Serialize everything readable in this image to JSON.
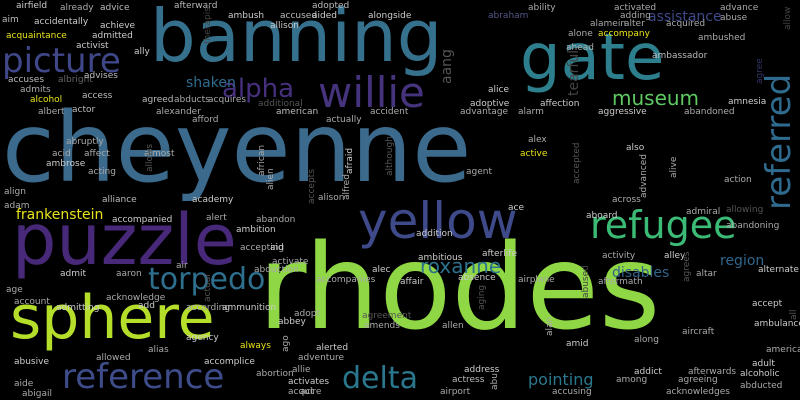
{
  "words": [
    {
      "text": "cheyenne",
      "color": "#3b6a8c"
    },
    {
      "text": "rhodes",
      "color": "#8fd744"
    },
    {
      "text": "banning",
      "color": "#35718d"
    },
    {
      "text": "gate",
      "color": "#2d7f8e"
    },
    {
      "text": "puzzle",
      "color": "#482878"
    },
    {
      "text": "sphere",
      "color": "#b5de2b"
    },
    {
      "text": "yellow",
      "color": "#3e4a89"
    },
    {
      "text": "refugee",
      "color": "#3bbb75"
    },
    {
      "text": "picture",
      "color": "#3f4788"
    },
    {
      "text": "willie",
      "color": "#46337e"
    },
    {
      "text": "referred",
      "color": "#2f6b8e"
    },
    {
      "text": "reference",
      "color": "#3e4c8a"
    },
    {
      "text": "alpha",
      "color": "#46307e"
    },
    {
      "text": "torpedo",
      "color": "#2e6f8e"
    },
    {
      "text": "delta",
      "color": "#2a778e"
    },
    {
      "text": "museum",
      "color": "#5ec962"
    },
    {
      "text": "roxanne",
      "color": "#2c728e"
    },
    {
      "text": "frankenstein",
      "color": "#e8e419"
    },
    {
      "text": "shaken",
      "color": "#2f6c8e"
    },
    {
      "text": "pointing",
      "color": "#2a788e"
    },
    {
      "text": "assistance",
      "color": "#3e4989"
    },
    {
      "text": "disables",
      "color": "#33638d"
    },
    {
      "text": "region",
      "color": "#31668e"
    },
    {
      "text": "airfield",
      "color": "#cccccc"
    },
    {
      "text": "already",
      "color": "#aaaaaa"
    },
    {
      "text": "advice",
      "color": "#bbbbbb"
    },
    {
      "text": "afterward",
      "color": "#bbbbbb"
    },
    {
      "text": "ambush",
      "color": "#cccccc"
    },
    {
      "text": "accused",
      "color": "#bbbbbb"
    },
    {
      "text": "allison",
      "color": "#cccccc"
    },
    {
      "text": "adopted",
      "color": "#bbbbbb"
    },
    {
      "text": "aided",
      "color": "#cccccc"
    },
    {
      "text": "alongside",
      "color": "#cccccc"
    },
    {
      "text": "abraham",
      "color": "#555588"
    },
    {
      "text": "ability",
      "color": "#aaaaaa"
    },
    {
      "text": "activated",
      "color": "#aaaaaa"
    },
    {
      "text": "advance",
      "color": "#aaaaaa"
    },
    {
      "text": "adding",
      "color": "#aaaaaa"
    },
    {
      "text": "alamein",
      "color": "#aaaaaa"
    },
    {
      "text": "abuse",
      "color": "#aaaaaa"
    },
    {
      "text": "alter",
      "color": "#aaaaaa"
    },
    {
      "text": "acquired",
      "color": "#aaaaaa"
    },
    {
      "text": "ambushed",
      "color": "#aaaaaa"
    },
    {
      "text": "aim",
      "color": "#bbbbbb"
    },
    {
      "text": "accidentally",
      "color": "#cccccc"
    },
    {
      "text": "achieve",
      "color": "#cccccc"
    },
    {
      "text": "acquaintance",
      "color": "#e8e419"
    },
    {
      "text": "admitted",
      "color": "#cccccc"
    },
    {
      "text": "activist",
      "color": "#cccccc"
    },
    {
      "text": "ally",
      "color": "#cccccc"
    },
    {
      "text": "accompany",
      "color": "#e8e419"
    },
    {
      "text": "alone",
      "color": "#aaaaaa"
    },
    {
      "text": "ahead",
      "color": "#aaaaaa"
    },
    {
      "text": "ambassador",
      "color": "#bbbbbb"
    },
    {
      "text": "accuses",
      "color": "#bbbbbb"
    },
    {
      "text": "albright",
      "color": "#666666"
    },
    {
      "text": "advises",
      "color": "#bbbbbb"
    },
    {
      "text": "admits",
      "color": "#aaaaaa"
    },
    {
      "text": "alcohol",
      "color": "#e8e419"
    },
    {
      "text": "access",
      "color": "#bbbbbb"
    },
    {
      "text": "albert",
      "color": "#aaaaaa"
    },
    {
      "text": "actor",
      "color": "#bbbbbb"
    },
    {
      "text": "agreed",
      "color": "#bbbbbb"
    },
    {
      "text": "abducts",
      "color": "#aaaaaa"
    },
    {
      "text": "acquires",
      "color": "#aaaaaa"
    },
    {
      "text": "additional",
      "color": "#555555"
    },
    {
      "text": "alexander",
      "color": "#aaaaaa"
    },
    {
      "text": "afford",
      "color": "#aaaaaa"
    },
    {
      "text": "american",
      "color": "#bbbbbb"
    },
    {
      "text": "actually",
      "color": "#aaaaaa"
    },
    {
      "text": "accident",
      "color": "#aaaaaa"
    },
    {
      "text": "adoptive",
      "color": "#cccccc"
    },
    {
      "text": "advantage",
      "color": "#aaaaaa"
    },
    {
      "text": "affection",
      "color": "#cccccc"
    },
    {
      "text": "aggressive",
      "color": "#cccccc"
    },
    {
      "text": "alarm",
      "color": "#aaaaaa"
    },
    {
      "text": "alice",
      "color": "#cccccc"
    },
    {
      "text": "abandoned",
      "color": "#aaaaaa"
    },
    {
      "text": "amnesia",
      "color": "#cccccc"
    },
    {
      "text": "acid",
      "color": "#aaaaaa"
    },
    {
      "text": "abruptly",
      "color": "#aaaaaa"
    },
    {
      "text": "affect",
      "color": "#aaaaaa"
    },
    {
      "text": "almost",
      "color": "#aaaaaa"
    },
    {
      "text": "ambrose",
      "color": "#cccccc"
    },
    {
      "text": "acting",
      "color": "#aaaaaa"
    },
    {
      "text": "active",
      "color": "#e8e419"
    },
    {
      "text": "also",
      "color": "#cccccc"
    },
    {
      "text": "alex",
      "color": "#aaaaaa"
    },
    {
      "text": "agent",
      "color": "#aaaaaa"
    },
    {
      "text": "align",
      "color": "#aaaaaa"
    },
    {
      "text": "adam",
      "color": "#aaaaaa"
    },
    {
      "text": "action",
      "color": "#aaaaaa"
    },
    {
      "text": "alliance",
      "color": "#bbbbbb"
    },
    {
      "text": "accompanied",
      "color": "#cccccc"
    },
    {
      "text": "academy",
      "color": "#cccccc"
    },
    {
      "text": "alison",
      "color": "#aaaaaa"
    },
    {
      "text": "ace",
      "color": "#cccccc"
    },
    {
      "text": "across",
      "color": "#aaaaaa"
    },
    {
      "text": "aboard",
      "color": "#cccccc"
    },
    {
      "text": "admiral",
      "color": "#aaaaaa"
    },
    {
      "text": "allowing",
      "color": "#555555"
    },
    {
      "text": "addition",
      "color": "#cccccc"
    },
    {
      "text": "alert",
      "color": "#aaaaaa"
    },
    {
      "text": "abandon",
      "color": "#aaaaaa"
    },
    {
      "text": "ambition",
      "color": "#cccccc"
    },
    {
      "text": "accepting",
      "color": "#aaaaaa"
    },
    {
      "text": "aid",
      "color": "#cccccc"
    },
    {
      "text": "afterlife",
      "color": "#cccccc"
    },
    {
      "text": "abandoning",
      "color": "#aaaaaa"
    },
    {
      "text": "ambitious",
      "color": "#cccccc"
    },
    {
      "text": "activity",
      "color": "#aaaaaa"
    },
    {
      "text": "alley",
      "color": "#cccccc"
    },
    {
      "text": "admit",
      "color": "#cccccc"
    },
    {
      "text": "aaron",
      "color": "#aaaaaa"
    },
    {
      "text": "air",
      "color": "#aaaaaa"
    },
    {
      "text": "activate",
      "color": "#aaaaaa"
    },
    {
      "text": "abduction",
      "color": "#aaaaaa"
    },
    {
      "text": "accompanies",
      "color": "#aaaaaa"
    },
    {
      "text": "alec",
      "color": "#cccccc"
    },
    {
      "text": "absence",
      "color": "#cccccc"
    },
    {
      "text": "affair",
      "color": "#cccccc"
    },
    {
      "text": "airplane",
      "color": "#aaaaaa"
    },
    {
      "text": "aftermath",
      "color": "#aaaaaa"
    },
    {
      "text": "altar",
      "color": "#aaaaaa"
    },
    {
      "text": "alternate",
      "color": "#cccccc"
    },
    {
      "text": "age",
      "color": "#aaaaaa"
    },
    {
      "text": "acknowledge",
      "color": "#aaaaaa"
    },
    {
      "text": "add",
      "color": "#cccccc"
    },
    {
      "text": "according",
      "color": "#aaaaaa"
    },
    {
      "text": "ammunition",
      "color": "#cccccc"
    },
    {
      "text": "account",
      "color": "#aaaaaa"
    },
    {
      "text": "admitting",
      "color": "#cccccc"
    },
    {
      "text": "adopt",
      "color": "#aaaaaa"
    },
    {
      "text": "abbey",
      "color": "#cccccc"
    },
    {
      "text": "agreement",
      "color": "#555555"
    },
    {
      "text": "amends",
      "color": "#aaaaaa"
    },
    {
      "text": "along",
      "color": "#aaaaaa"
    },
    {
      "text": "accept",
      "color": "#cccccc"
    },
    {
      "text": "ambulance",
      "color": "#cccccc"
    },
    {
      "text": "aircraft",
      "color": "#aaaaaa"
    },
    {
      "text": "agency",
      "color": "#cccccc"
    },
    {
      "text": "amid",
      "color": "#cccccc"
    },
    {
      "text": "allen",
      "color": "#aaaaaa"
    },
    {
      "text": "america",
      "color": "#aaaaaa"
    },
    {
      "text": "adult",
      "color": "#cccccc"
    },
    {
      "text": "abusive",
      "color": "#cccccc"
    },
    {
      "text": "allowed",
      "color": "#aaaaaa"
    },
    {
      "text": "alias",
      "color": "#aaaaaa"
    },
    {
      "text": "accomplice",
      "color": "#cccccc"
    },
    {
      "text": "adventure",
      "color": "#aaaaaa"
    },
    {
      "text": "alerted",
      "color": "#cccccc"
    },
    {
      "text": "allie",
      "color": "#aaaaaa"
    },
    {
      "text": "address",
      "color": "#cccccc"
    },
    {
      "text": "addict",
      "color": "#cccccc"
    },
    {
      "text": "afterwards",
      "color": "#aaaaaa"
    },
    {
      "text": "alcoholic",
      "color": "#cccccc"
    },
    {
      "text": "abortion",
      "color": "#aaaaaa"
    },
    {
      "text": "always",
      "color": "#e8e419"
    },
    {
      "text": "actress",
      "color": "#bbbbbb"
    },
    {
      "text": "among",
      "color": "#aaaaaa"
    },
    {
      "text": "agreeing",
      "color": "#aaaaaa"
    },
    {
      "text": "abducted",
      "color": "#aaaaaa"
    },
    {
      "text": "aide",
      "color": "#aaaaaa"
    },
    {
      "text": "activates",
      "color": "#cccccc"
    },
    {
      "text": "acquire",
      "color": "#aaaaaa"
    },
    {
      "text": "act",
      "color": "#aaaaaa"
    },
    {
      "text": "airport",
      "color": "#aaaaaa"
    },
    {
      "text": "accusing",
      "color": "#aaaaaa"
    },
    {
      "text": "acknowledges",
      "color": "#aaaaaa"
    },
    {
      "text": "abigail",
      "color": "#aaaaaa"
    },
    {
      "text": "alive",
      "color": "#aaaaaa"
    },
    {
      "text": "alien",
      "color": "#aaaaaa"
    },
    {
      "text": "african",
      "color": "#aaaaaa"
    },
    {
      "text": "accepts",
      "color": "#555555"
    },
    {
      "text": "alfred",
      "color": "#aaaaaa"
    },
    {
      "text": "afraid",
      "color": "#cccccc"
    },
    {
      "text": "although",
      "color": "#555555"
    },
    {
      "text": "accepted",
      "color": "#555555"
    },
    {
      "text": "advanced",
      "color": "#aaaaaa"
    },
    {
      "text": "allows",
      "color": "#555555"
    },
    {
      "text": "aang",
      "color": "#555555"
    },
    {
      "text": "tearful",
      "color": "#444444"
    },
    {
      "text": "therapist",
      "color": "#444444"
    },
    {
      "text": "allow",
      "color": "#444444"
    },
    {
      "text": "agree",
      "color": "#333366"
    },
    {
      "text": "abused",
      "color": "#444444"
    },
    {
      "text": "actual",
      "color": "#555555"
    },
    {
      "text": "aging",
      "color": "#555555"
    },
    {
      "text": "ago",
      "color": "#aaaaaa"
    },
    {
      "text": "alan",
      "color": "#aaaaaa"
    },
    {
      "text": "agrees",
      "color": "#555555"
    },
    {
      "text": "all",
      "color": "#555555"
    },
    {
      "text": "abu",
      "color": "#aaaaaa"
    },
    {
      "text": "al",
      "color": "#555555"
    },
    {
      "text": "ambassador",
      "color": "#bbbbbb"
    }
  ]
}
